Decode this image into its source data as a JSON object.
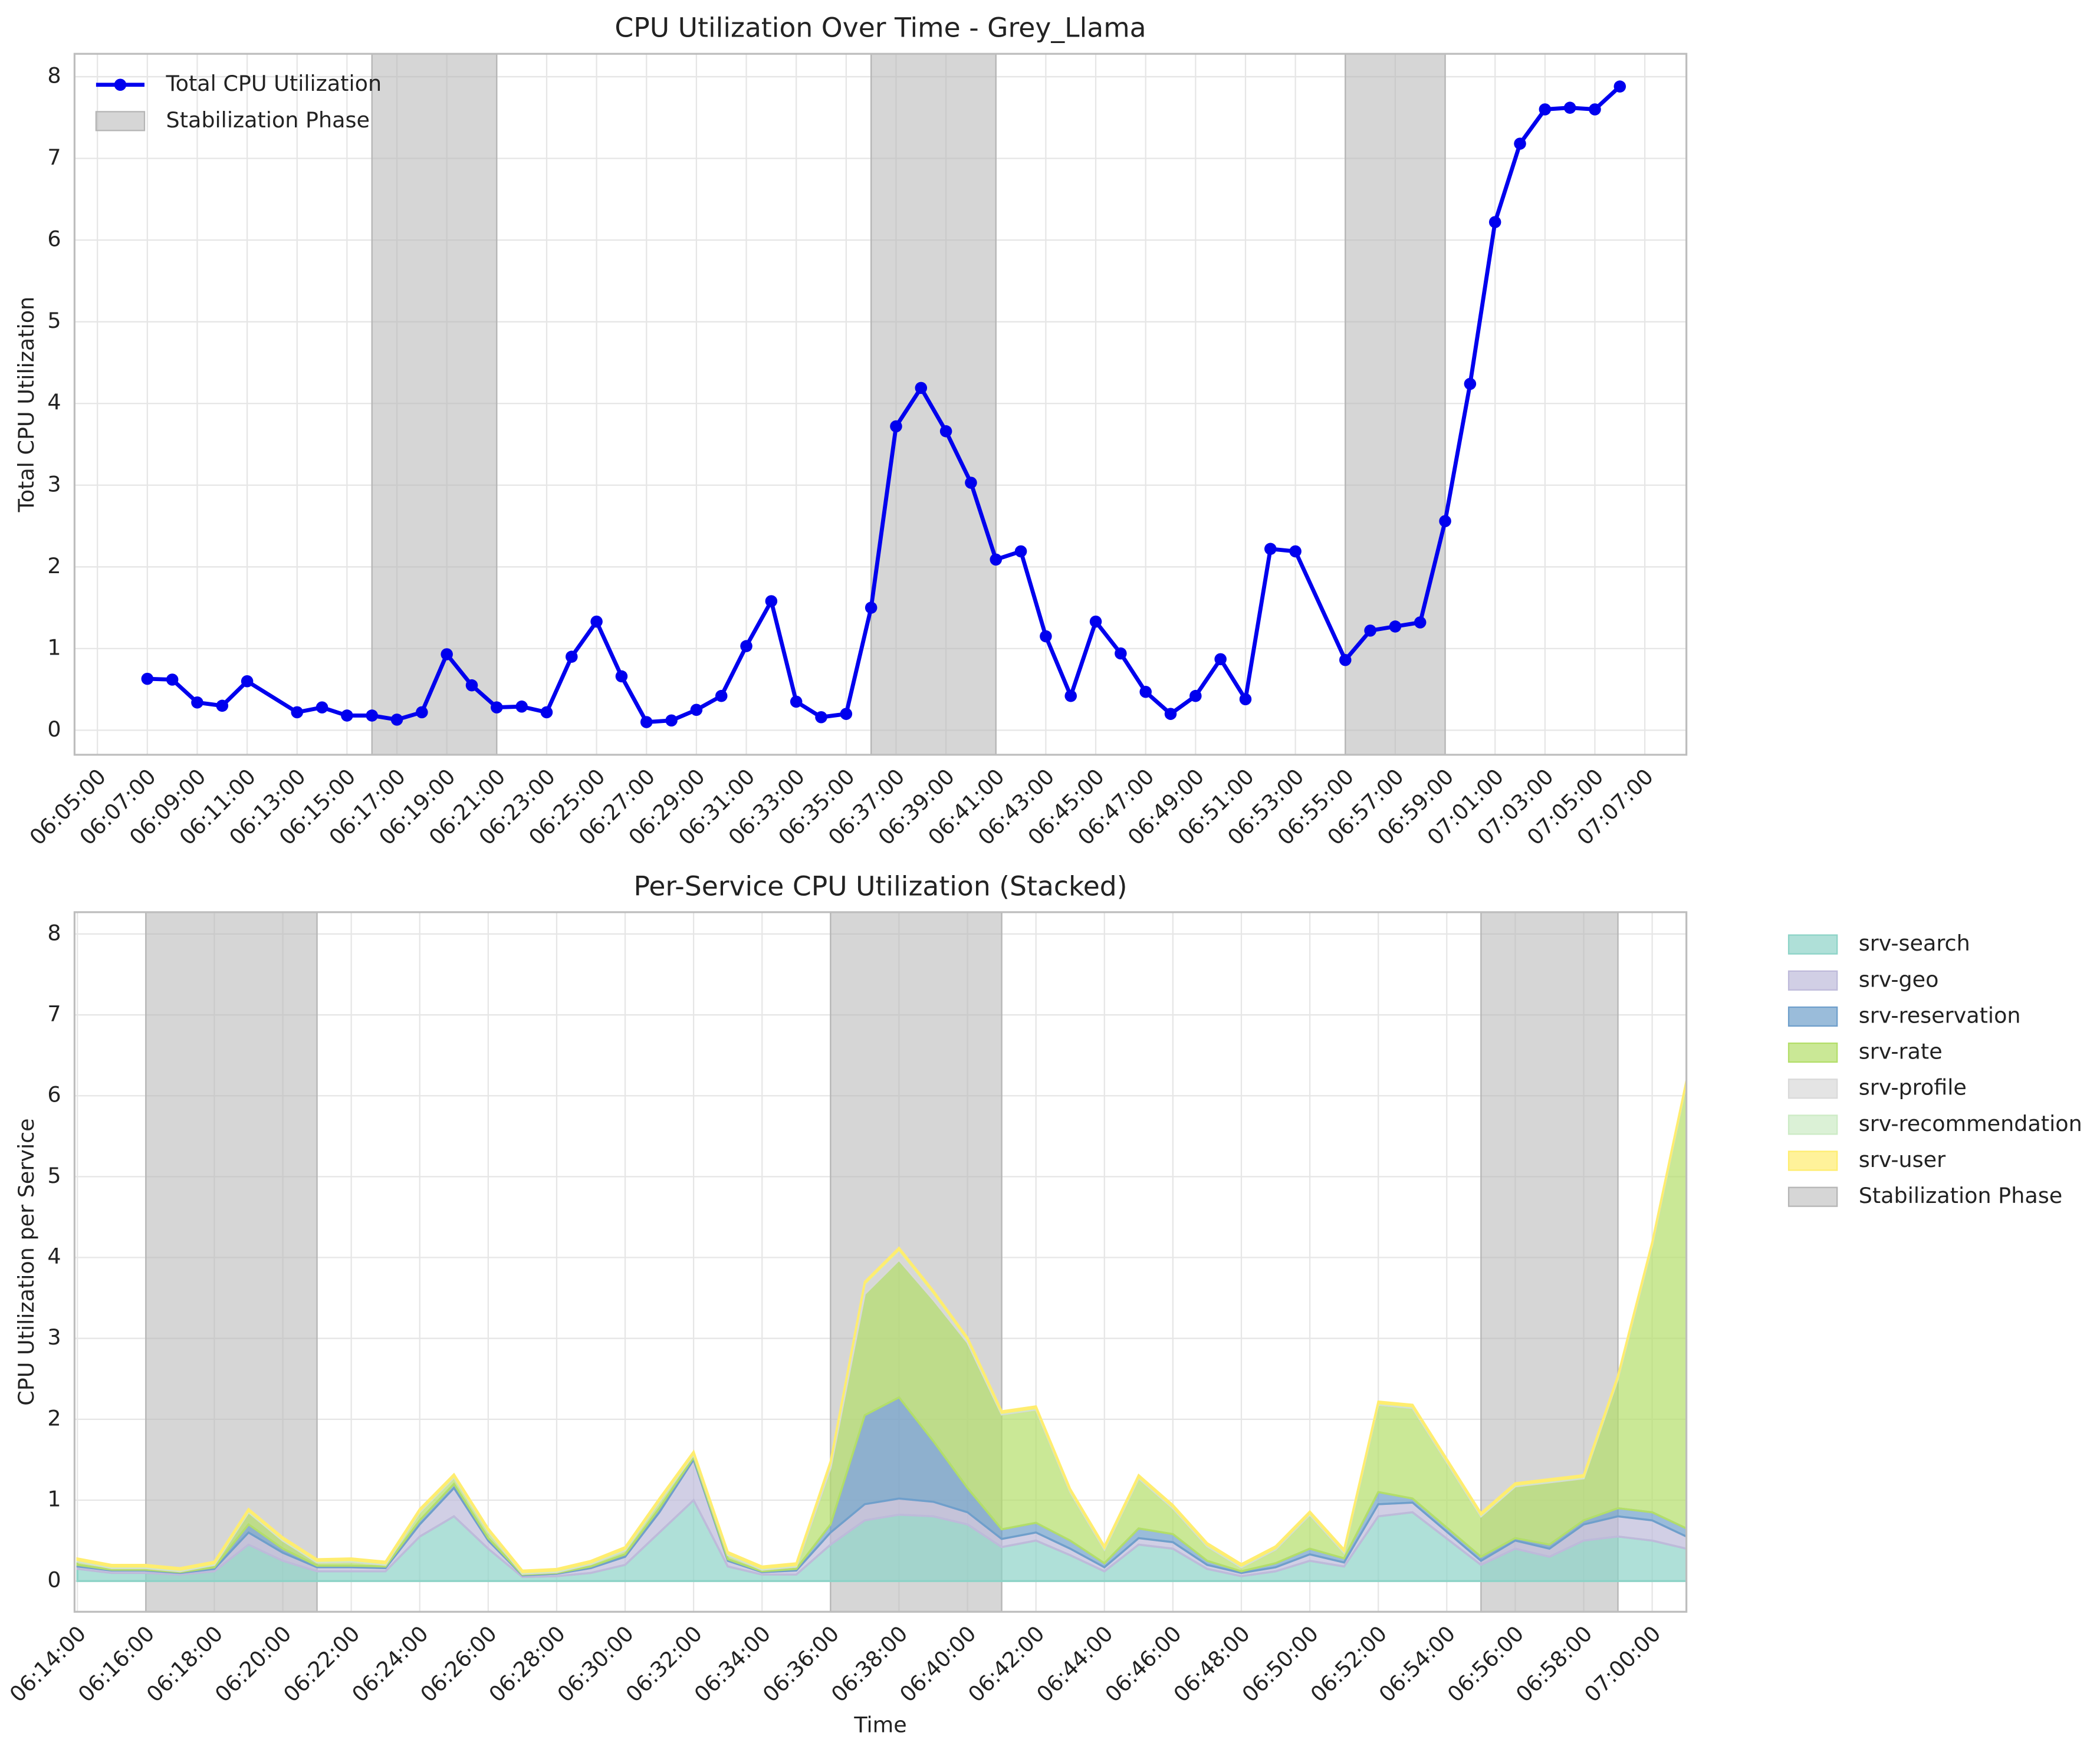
{
  "chart_data": [
    {
      "type": "line",
      "title": "CPU Utilization Over Time - Grey_Llama",
      "ylabel": "Total CPU Utilization",
      "x": [
        "06:07:00",
        "06:08:00",
        "06:09:00",
        "06:10:00",
        "06:11:00",
        "06:13:00",
        "06:14:00",
        "06:15:00",
        "06:16:00",
        "06:17:00",
        "06:18:00",
        "06:19:00",
        "06:20:00",
        "06:21:00",
        "06:22:00",
        "06:23:00",
        "06:24:00",
        "06:25:00",
        "06:26:00",
        "06:27:00",
        "06:28:00",
        "06:29:00",
        "06:30:00",
        "06:31:00",
        "06:32:00",
        "06:33:00",
        "06:34:00",
        "06:35:00",
        "06:36:00",
        "06:37:00",
        "06:38:00",
        "06:39:00",
        "06:40:00",
        "06:41:00",
        "06:42:00",
        "06:43:00",
        "06:44:00",
        "06:45:00",
        "06:46:00",
        "06:47:00",
        "06:48:00",
        "06:49:00",
        "06:50:00",
        "06:51:00",
        "06:52:00",
        "06:53:00",
        "06:55:00",
        "06:56:00",
        "06:57:00",
        "06:58:00",
        "06:59:00",
        "07:00:00",
        "07:01:00",
        "07:02:00",
        "07:03:00",
        "07:04:00",
        "07:05:00",
        "07:06:00"
      ],
      "series": [
        {
          "name": "Total CPU Utilization",
          "color": "#0000ee",
          "values": [
            0.63,
            0.62,
            0.34,
            0.3,
            0.6,
            0.22,
            0.28,
            0.18,
            0.18,
            0.13,
            0.22,
            0.93,
            0.55,
            0.28,
            0.29,
            0.22,
            0.9,
            1.33,
            0.66,
            0.1,
            0.12,
            0.25,
            0.42,
            1.03,
            1.58,
            0.35,
            0.16,
            0.2,
            1.5,
            3.72,
            4.19,
            3.66,
            3.03,
            2.09,
            2.19,
            1.15,
            0.42,
            1.33,
            0.94,
            0.47,
            0.2,
            0.42,
            0.87,
            0.38,
            2.22,
            2.19,
            0.86,
            1.22,
            1.27,
            1.32,
            2.56,
            4.24,
            6.22,
            7.18,
            7.6,
            7.62,
            7.6,
            7.88
          ]
        }
      ],
      "spans": [
        [
          "06:16:00",
          "06:21:00"
        ],
        [
          "06:36:00",
          "06:41:00"
        ],
        [
          "06:55:00",
          "06:59:00"
        ]
      ],
      "span_label": "Stabilization Phase",
      "span_color": "#b5b5b5",
      "xlim": [
        "06:04:05",
        "07:08:40"
      ],
      "ylim": [
        -0.3,
        8.28
      ],
      "xticks": [
        "06:05:00",
        "06:07:00",
        "06:09:00",
        "06:11:00",
        "06:13:00",
        "06:15:00",
        "06:17:00",
        "06:19:00",
        "06:21:00",
        "06:23:00",
        "06:25:00",
        "06:27:00",
        "06:29:00",
        "06:31:00",
        "06:33:00",
        "06:35:00",
        "06:37:00",
        "06:39:00",
        "06:41:00",
        "06:43:00",
        "06:45:00",
        "06:47:00",
        "06:49:00",
        "06:51:00",
        "06:53:00",
        "06:55:00",
        "06:57:00",
        "06:59:00",
        "07:01:00",
        "07:03:00",
        "07:05:00",
        "07:07:00"
      ],
      "yticks": [
        0,
        1,
        2,
        3,
        4,
        5,
        6,
        7,
        8
      ],
      "grid": true,
      "legend": "upper left"
    },
    {
      "type": "area",
      "stacked": true,
      "title": "Per-Service CPU Utilization (Stacked)",
      "xlabel": "Time",
      "ylabel": "CPU Utilization per Service",
      "x": [
        "06:14:00",
        "06:15:00",
        "06:16:00",
        "06:17:00",
        "06:18:00",
        "06:19:00",
        "06:20:00",
        "06:21:00",
        "06:22:00",
        "06:23:00",
        "06:24:00",
        "06:25:00",
        "06:26:00",
        "06:27:00",
        "06:28:00",
        "06:29:00",
        "06:30:00",
        "06:31:00",
        "06:32:00",
        "06:33:00",
        "06:34:00",
        "06:35:00",
        "06:36:00",
        "06:37:00",
        "06:38:00",
        "06:39:00",
        "06:40:00",
        "06:41:00",
        "06:42:00",
        "06:43:00",
        "06:44:00",
        "06:45:00",
        "06:46:00",
        "06:47:00",
        "06:48:00",
        "06:49:00",
        "06:50:00",
        "06:51:00",
        "06:52:00",
        "06:53:00",
        "06:55:00",
        "06:56:00",
        "06:57:00",
        "06:58:00",
        "06:59:00",
        "07:00:00",
        "07:01:00"
      ],
      "series": [
        {
          "name": "srv-search",
          "color": "#8dd3c7",
          "values": [
            0.15,
            0.1,
            0.1,
            0.08,
            0.12,
            0.45,
            0.25,
            0.12,
            0.12,
            0.12,
            0.55,
            0.8,
            0.4,
            0.05,
            0.06,
            0.1,
            0.2,
            0.6,
            1.0,
            0.18,
            0.08,
            0.08,
            0.45,
            0.75,
            0.82,
            0.8,
            0.7,
            0.42,
            0.5,
            0.32,
            0.12,
            0.45,
            0.4,
            0.15,
            0.06,
            0.12,
            0.25,
            0.18,
            0.8,
            0.85,
            0.2,
            0.4,
            0.3,
            0.5,
            0.55,
            0.5,
            0.4
          ]
        },
        {
          "name": "srv-geo",
          "color": "#bebada",
          "values": [
            0.03,
            0.03,
            0.03,
            0.02,
            0.03,
            0.15,
            0.1,
            0.05,
            0.05,
            0.04,
            0.15,
            0.35,
            0.1,
            0.02,
            0.03,
            0.06,
            0.1,
            0.25,
            0.5,
            0.07,
            0.03,
            0.05,
            0.15,
            0.2,
            0.2,
            0.18,
            0.15,
            0.1,
            0.1,
            0.08,
            0.05,
            0.08,
            0.08,
            0.05,
            0.04,
            0.05,
            0.08,
            0.05,
            0.15,
            0.12,
            0.05,
            0.1,
            0.1,
            0.2,
            0.25,
            0.25,
            0.15
          ]
        },
        {
          "name": "srv-reservation",
          "color": "#6f9fcb",
          "values": [
            0.02,
            0.01,
            0.01,
            0.01,
            0.02,
            0.1,
            0.05,
            0.02,
            0.02,
            0.02,
            0.05,
            0.05,
            0.03,
            0.01,
            0.01,
            0.02,
            0.03,
            0.05,
            0.03,
            0.02,
            0.01,
            0.02,
            0.1,
            1.1,
            1.25,
            0.75,
            0.3,
            0.12,
            0.12,
            0.1,
            0.05,
            0.12,
            0.1,
            0.05,
            0.02,
            0.05,
            0.07,
            0.05,
            0.15,
            0.05,
            0.05,
            0.03,
            0.05,
            0.05,
            0.1,
            0.1,
            0.1
          ]
        },
        {
          "name": "srv-rate",
          "color": "#b3de69",
          "values": [
            0.04,
            0.02,
            0.02,
            0.01,
            0.03,
            0.15,
            0.1,
            0.04,
            0.05,
            0.02,
            0.1,
            0.08,
            0.08,
            0.01,
            0.01,
            0.03,
            0.05,
            0.08,
            0.03,
            0.05,
            0.02,
            0.03,
            0.7,
            1.5,
            1.7,
            1.75,
            1.8,
            1.42,
            1.4,
            0.6,
            0.17,
            0.62,
            0.32,
            0.18,
            0.05,
            0.17,
            0.42,
            0.07,
            1.08,
            1.12,
            0.5,
            0.64,
            0.77,
            0.52,
            1.6,
            3.3,
            5.5
          ]
        },
        {
          "name": "srv-profile",
          "color": "#d9d9d9",
          "values": [
            0.01,
            0.01,
            0.01,
            0.01,
            0.01,
            0.01,
            0.01,
            0.01,
            0.01,
            0.01,
            0.01,
            0.01,
            0.01,
            0.01,
            0.01,
            0.01,
            0.01,
            0.01,
            0.01,
            0.01,
            0.01,
            0.01,
            0.05,
            0.12,
            0.12,
            0.08,
            0.03,
            0.01,
            0.01,
            0.01,
            0.01,
            0.01,
            0.01,
            0.01,
            0.01,
            0.01,
            0.01,
            0.01,
            0.01,
            0.01,
            0.01,
            0.01,
            0.01,
            0.01,
            0.01,
            0.01,
            0.01
          ]
        },
        {
          "name": "srv-recommendation",
          "color": "#ccebc5",
          "values": [
            0.01,
            0.01,
            0.01,
            0.01,
            0.01,
            0.01,
            0.01,
            0.01,
            0.01,
            0.01,
            0.01,
            0.01,
            0.01,
            0.01,
            0.01,
            0.01,
            0.01,
            0.01,
            0.01,
            0.01,
            0.01,
            0.01,
            0.01,
            0.01,
            0.01,
            0.01,
            0.01,
            0.01,
            0.01,
            0.01,
            0.01,
            0.01,
            0.01,
            0.01,
            0.01,
            0.01,
            0.01,
            0.01,
            0.01,
            0.01,
            0.01,
            0.01,
            0.01,
            0.01,
            0.01,
            0.01,
            0.01
          ]
        },
        {
          "name": "srv-user",
          "color": "#ffed6f",
          "values": [
            0.02,
            0.02,
            0.02,
            0.02,
            0.02,
            0.02,
            0.02,
            0.02,
            0.02,
            0.02,
            0.02,
            0.02,
            0.02,
            0.02,
            0.02,
            0.02,
            0.02,
            0.02,
            0.02,
            0.02,
            0.02,
            0.02,
            0.02,
            0.02,
            0.02,
            0.02,
            0.02,
            0.02,
            0.02,
            0.02,
            0.02,
            0.02,
            0.02,
            0.02,
            0.02,
            0.02,
            0.02,
            0.02,
            0.02,
            0.02,
            0.02,
            0.02,
            0.02,
            0.02,
            0.02,
            0.02,
            0.02
          ]
        }
      ],
      "spans": [
        [
          "06:16:00",
          "06:21:00"
        ],
        [
          "06:36:00",
          "06:41:00"
        ],
        [
          "06:55:00",
          "06:59:00"
        ]
      ],
      "span_label": "Stabilization Phase",
      "span_color": "#b5b5b5",
      "xlim": [
        "06:13:55",
        "07:01:00"
      ],
      "ylim": [
        -0.38,
        8.27
      ],
      "xticks": [
        "06:14:00",
        "06:16:00",
        "06:18:00",
        "06:20:00",
        "06:22:00",
        "06:24:00",
        "06:26:00",
        "06:28:00",
        "06:30:00",
        "06:32:00",
        "06:34:00",
        "06:36:00",
        "06:38:00",
        "06:40:00",
        "06:42:00",
        "06:44:00",
        "06:46:00",
        "06:48:00",
        "06:50:00",
        "06:52:00",
        "06:54:00",
        "06:56:00",
        "06:58:00",
        "07:00:00"
      ],
      "yticks": [
        0,
        1,
        2,
        3,
        4,
        5,
        6,
        7,
        8
      ],
      "grid": true,
      "legend": "outside right"
    }
  ]
}
